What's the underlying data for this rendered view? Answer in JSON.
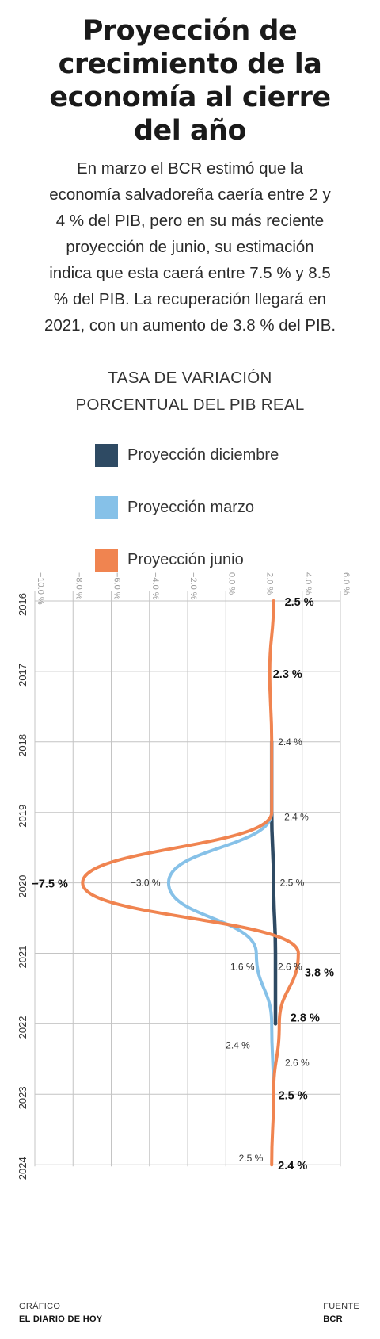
{
  "header": {
    "title_lines": [
      "Proyección de",
      "crecimiento de la",
      "economía al cierre",
      "del año"
    ],
    "intro_lines": [
      "En marzo el BCR estimó que la",
      "economía salvadoreña caería entre 2 y",
      "4 % del PIB, pero en su más reciente",
      "proyección de junio, su estimación",
      "indica que esta caerá entre 7.5 % y 8.5",
      "% del PIB. La recuperación llegará en",
      "2021, con un aumento de 3.8 % del PIB."
    ],
    "subtitle_lines": [
      "TASA DE VARIACIÓN",
      "PORCENTUAL DEL PIB REAL"
    ]
  },
  "legend": [
    {
      "label": "Proyección diciembre",
      "color": "#2e4a63"
    },
    {
      "label": "Proyección marzo",
      "color": "#86c1e8"
    },
    {
      "label": "Proyección junio",
      "color": "#f08450"
    }
  ],
  "chart_data": {
    "type": "line",
    "orientation": "vertical",
    "value_axis": {
      "range": [
        -10,
        6
      ],
      "ticks": [
        -10,
        -8,
        -6,
        -4,
        -2,
        0,
        2,
        4,
        6
      ],
      "tick_labels": [
        "−10.0 %",
        "−8.0 %",
        "−6.0 %",
        "−4.0 %",
        "−2.0 %",
        "0.0 %",
        "2.0 %",
        "4.0 %",
        "6.0 %"
      ]
    },
    "category_axis": {
      "labels": [
        "2016",
        "2017",
        "2018",
        "2019",
        "2020",
        "2021",
        "2022",
        "2023",
        "2024"
      ]
    },
    "grid": true,
    "smooth": true,
    "series": [
      {
        "name": "Proyección diciembre",
        "color": "#2e4a63",
        "points": [
          [
            2018,
            2.4
          ],
          [
            2019,
            2.4
          ],
          [
            2020,
            2.5
          ],
          [
            2021,
            2.6
          ],
          [
            2022,
            2.6
          ]
        ]
      },
      {
        "name": "Proyección marzo",
        "color": "#86c1e8",
        "points": [
          [
            2018,
            2.4
          ],
          [
            2019,
            2.4
          ],
          [
            2020,
            -3.0
          ],
          [
            2021,
            1.6
          ],
          [
            2022,
            2.4
          ],
          [
            2023,
            2.5
          ]
        ]
      },
      {
        "name": "Proyección junio",
        "color": "#f08450",
        "points": [
          [
            2016,
            2.5
          ],
          [
            2017,
            2.3
          ],
          [
            2018,
            2.4
          ],
          [
            2019,
            2.4
          ],
          [
            2020,
            -7.5
          ],
          [
            2021,
            3.8
          ],
          [
            2022,
            2.8
          ],
          [
            2023,
            2.5
          ],
          [
            2024,
            2.4
          ]
        ]
      }
    ],
    "annotations": [
      {
        "text": "2.5 %",
        "year": 2016,
        "value": 2.5,
        "bold": true
      },
      {
        "text": "2.3 %",
        "year": 2017,
        "value": 2.3,
        "bold": true
      },
      {
        "text": "2.4 %",
        "year": 2018,
        "value": 2.4,
        "bold": false
      },
      {
        "text": "2.4 %",
        "year": 2019,
        "value": 2.4,
        "bold": false
      },
      {
        "text": "−7.5 %",
        "year": 2020,
        "value": -7.5,
        "bold": true
      },
      {
        "text": "−3.0 %",
        "year": 2020,
        "value": -3.0,
        "bold": false
      },
      {
        "text": "2.5 %",
        "year": 2020,
        "value": 2.5,
        "bold": false
      },
      {
        "text": "1.6 %",
        "year": 2021,
        "value": 1.6,
        "bold": false
      },
      {
        "text": "2.6 %",
        "year": 2021,
        "value": 2.6,
        "bold": false
      },
      {
        "text": "3.8 %",
        "year": 2021,
        "value": 3.8,
        "bold": true
      },
      {
        "text": "2.8 %",
        "year": 2022,
        "value": 2.8,
        "bold": true
      },
      {
        "text": "2.4 %",
        "year": 2022,
        "value": 2.4,
        "bold": false
      },
      {
        "text": "2.6 %",
        "year": 2022,
        "value": 2.6,
        "bold": false
      },
      {
        "text": "2.5 %",
        "year": 2023,
        "value": 2.5,
        "bold": true
      },
      {
        "text": "2.5 %",
        "year": 2024,
        "value": 2.5,
        "bold": false
      },
      {
        "text": "2.4 %",
        "year": 2024,
        "value": 2.4,
        "bold": true
      }
    ]
  },
  "footer": {
    "left_label": "GRÁFICO",
    "left_source": "EL DIARIO DE HOY",
    "right_label": "FUENTE",
    "right_source": "BCR"
  }
}
